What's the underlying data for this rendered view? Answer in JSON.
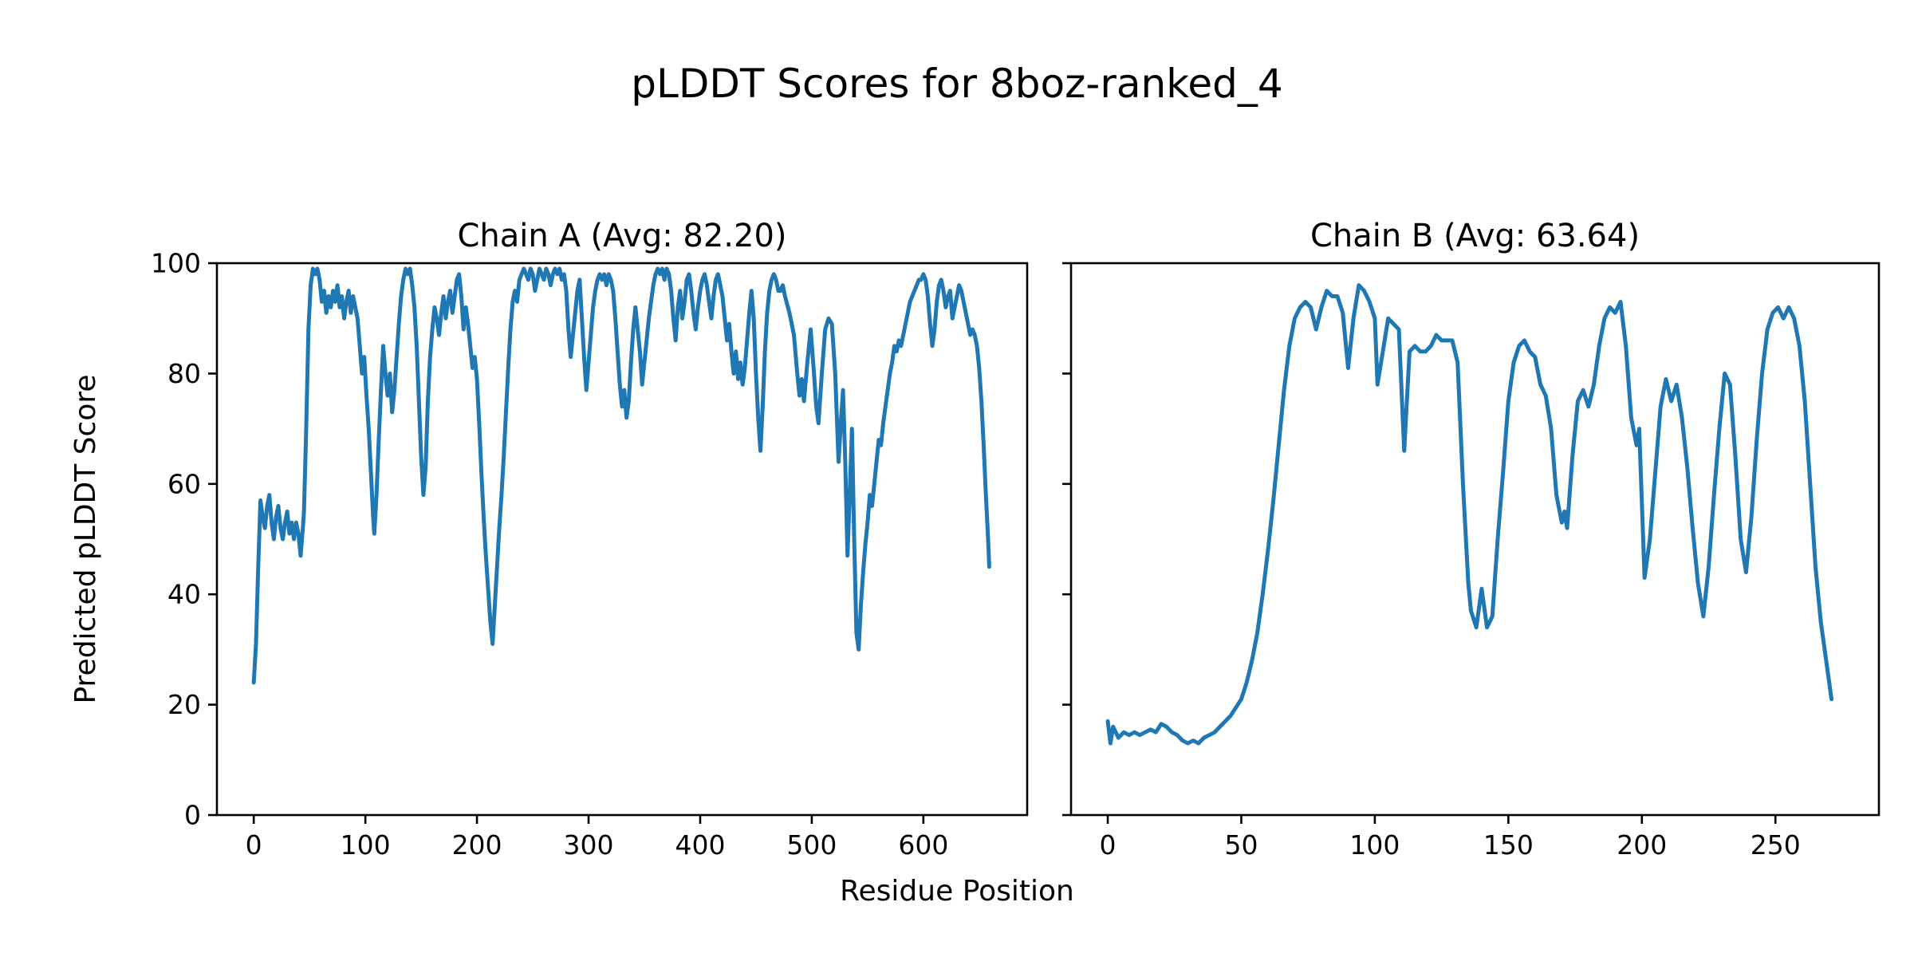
{
  "figure": {
    "title": "pLDDT Scores for 8boz-ranked_4",
    "xlabel": "Residue Position",
    "ylabel": "Predicted pLDDT Score",
    "background_color": "#ffffff",
    "line_color": "#1f77b4",
    "axis_color": "#000000"
  },
  "chart_data": [
    {
      "type": "line",
      "title": "Chain A (Avg: 82.20)",
      "avg": 82.2,
      "xlim": [
        -33,
        693
      ],
      "ylim": [
        0,
        100
      ],
      "xticks": [
        0,
        100,
        200,
        300,
        400,
        500,
        600
      ],
      "yticks": [
        0,
        20,
        40,
        60,
        80,
        100
      ],
      "show_ytick_labels": true,
      "x": [
        0,
        2,
        4,
        6,
        8,
        10,
        12,
        14,
        16,
        18,
        20,
        22,
        24,
        26,
        28,
        30,
        32,
        34,
        36,
        38,
        40,
        42,
        44,
        45,
        47,
        49,
        51,
        53,
        55,
        57,
        59,
        61,
        63,
        65,
        67,
        69,
        71,
        73,
        75,
        77,
        79,
        81,
        83,
        85,
        87,
        89,
        91,
        93,
        95,
        97,
        99,
        101,
        103,
        105,
        107,
        108,
        110,
        112,
        114,
        116,
        118,
        120,
        122,
        124,
        126,
        128,
        130,
        132,
        134,
        136,
        138,
        140,
        142,
        144,
        146,
        148,
        150,
        152,
        154,
        156,
        158,
        160,
        162,
        164,
        166,
        168,
        170,
        172,
        174,
        176,
        178,
        180,
        182,
        184,
        186,
        188,
        190,
        192,
        194,
        196,
        198,
        200,
        202,
        204,
        206,
        208,
        210,
        212,
        214,
        216,
        218,
        220,
        222,
        224,
        226,
        228,
        230,
        232,
        234,
        236,
        238,
        240,
        242,
        244,
        246,
        248,
        250,
        252,
        254,
        256,
        258,
        260,
        262,
        264,
        266,
        268,
        270,
        272,
        274,
        276,
        278,
        280,
        282,
        284,
        286,
        288,
        290,
        292,
        294,
        296,
        298,
        300,
        302,
        304,
        306,
        308,
        310,
        312,
        314,
        316,
        318,
        320,
        322,
        324,
        326,
        328,
        330,
        332,
        334,
        336,
        338,
        340,
        342,
        344,
        346,
        348,
        350,
        352,
        354,
        356,
        358,
        360,
        362,
        364,
        366,
        368,
        370,
        372,
        374,
        376,
        378,
        380,
        382,
        384,
        386,
        388,
        390,
        392,
        394,
        396,
        398,
        400,
        402,
        404,
        406,
        408,
        410,
        412,
        414,
        416,
        418,
        420,
        422,
        424,
        426,
        428,
        430,
        432,
        434,
        436,
        438,
        440,
        442,
        444,
        446,
        448,
        450,
        452,
        454,
        456,
        458,
        460,
        462,
        464,
        466,
        468,
        470,
        472,
        474,
        476,
        480,
        484,
        487,
        489,
        491,
        493,
        496,
        499,
        502,
        504,
        506,
        509,
        512,
        515,
        518,
        521,
        524,
        526,
        528,
        530,
        532,
        534,
        536,
        538,
        540,
        542,
        544,
        546,
        548,
        550,
        552,
        554,
        556,
        558,
        560,
        562,
        564,
        566,
        568,
        570,
        572,
        574,
        576,
        578,
        580,
        582,
        584,
        586,
        588,
        590,
        592,
        594,
        596,
        598,
        600,
        602,
        604,
        606,
        608,
        610,
        612,
        614,
        616,
        618,
        620,
        622,
        624,
        626,
        628,
        630,
        632,
        634,
        636,
        638,
        640,
        642,
        644,
        646,
        648,
        650,
        652,
        654,
        656,
        658,
        659
      ],
      "y": [
        24,
        31,
        45,
        57,
        54,
        52,
        56,
        58,
        53,
        50,
        54,
        56,
        52,
        50,
        53,
        55,
        51,
        53,
        50,
        53,
        51,
        47,
        52,
        55,
        70,
        88,
        96,
        99,
        98,
        99,
        97,
        93,
        95,
        91,
        94,
        92,
        95,
        93,
        96,
        92,
        94,
        90,
        93,
        95,
        91,
        94,
        92,
        90,
        85,
        80,
        83,
        76,
        70,
        62,
        54,
        51,
        58,
        68,
        77,
        85,
        80,
        76,
        80,
        73,
        77,
        83,
        89,
        94,
        97,
        99,
        98,
        99,
        96,
        92,
        85,
        75,
        65,
        58,
        63,
        75,
        83,
        88,
        92,
        90,
        87,
        91,
        94,
        90,
        93,
        95,
        91,
        94,
        97,
        98,
        94,
        88,
        92,
        89,
        85,
        81,
        83,
        79,
        71,
        62,
        54,
        47,
        41,
        35,
        31,
        38,
        45,
        52,
        58,
        65,
        73,
        81,
        88,
        93,
        95,
        93,
        97,
        98,
        99,
        98,
        97,
        99,
        98,
        95,
        97,
        99,
        98,
        97,
        99,
        98,
        96,
        98,
        99,
        98,
        99,
        97,
        98,
        95,
        88,
        83,
        87,
        91,
        95,
        97,
        90,
        83,
        77,
        82,
        87,
        92,
        95,
        97,
        98,
        97,
        98,
        96,
        98,
        97,
        95,
        90,
        84,
        78,
        74,
        77,
        72,
        75,
        82,
        88,
        92,
        88,
        84,
        78,
        82,
        86,
        90,
        93,
        96,
        98,
        99,
        98,
        99,
        97,
        99,
        98,
        95,
        90,
        86,
        92,
        95,
        90,
        93,
        97,
        98,
        95,
        91,
        88,
        92,
        95,
        97,
        98,
        96,
        93,
        90,
        94,
        97,
        98,
        96,
        94,
        90,
        86,
        89,
        84,
        80,
        84,
        79,
        82,
        78,
        81,
        86,
        91,
        95,
        90,
        80,
        72,
        66,
        74,
        84,
        91,
        95,
        97,
        98,
        97,
        95,
        95,
        96,
        94,
        91,
        87,
        80,
        76,
        79,
        75,
        82,
        88,
        80,
        74,
        71,
        80,
        88,
        90,
        89,
        80,
        64,
        71,
        77,
        64,
        47,
        58,
        70,
        50,
        33,
        30,
        38,
        44,
        49,
        53,
        58,
        56,
        60,
        64,
        68,
        67,
        71,
        74,
        77,
        80,
        82,
        85,
        84,
        86,
        85,
        87,
        89,
        91,
        93,
        94,
        95,
        96,
        97,
        97,
        98,
        97,
        94,
        89,
        85,
        88,
        93,
        96,
        97,
        95,
        92,
        94,
        95,
        90,
        92,
        94,
        96,
        95,
        93,
        91,
        89,
        87,
        88,
        87,
        85,
        81,
        75,
        67,
        58,
        50,
        45
      ]
    },
    {
      "type": "line",
      "title": "Chain B (Avg: 63.64)",
      "avg": 63.64,
      "xlim": [
        -13.75,
        288.75
      ],
      "ylim": [
        0,
        100
      ],
      "xticks": [
        0,
        50,
        100,
        150,
        200,
        250
      ],
      "yticks": [
        0,
        20,
        40,
        60,
        80,
        100
      ],
      "show_ytick_labels": false,
      "x": [
        0,
        1,
        2,
        4,
        6,
        8,
        10,
        12,
        14,
        16,
        18,
        20,
        22,
        24,
        26,
        28,
        30,
        32,
        34,
        36,
        38,
        40,
        42,
        44,
        46,
        48,
        50,
        52,
        54,
        56,
        58,
        60,
        62,
        64,
        66,
        68,
        70,
        72,
        74,
        76,
        78,
        80,
        82,
        84,
        86,
        88,
        90,
        92,
        94,
        96,
        98,
        100,
        101,
        103,
        105,
        107,
        109,
        111,
        113,
        115,
        117,
        119,
        121,
        123,
        125,
        127,
        129,
        131,
        133,
        135,
        136,
        138,
        140,
        142,
        144,
        146,
        148,
        150,
        152,
        154,
        156,
        158,
        160,
        162,
        164,
        166,
        168,
        170,
        171,
        172,
        174,
        176,
        178,
        180,
        182,
        184,
        186,
        188,
        190,
        192,
        194,
        196,
        198,
        199,
        201,
        203,
        205,
        207,
        209,
        211,
        213,
        215,
        217,
        219,
        221,
        223,
        225,
        227,
        229,
        231,
        233,
        235,
        237,
        239,
        241,
        243,
        245,
        247,
        249,
        251,
        253,
        255,
        257,
        259,
        261,
        263,
        265,
        267,
        269,
        271
      ],
      "y": [
        17,
        13,
        16,
        14,
        15,
        14.5,
        15,
        14.5,
        15,
        15.5,
        15,
        16.5,
        16,
        15,
        14.5,
        13.5,
        13,
        13.5,
        13,
        14,
        14.5,
        15,
        16,
        17,
        18,
        19.5,
        21,
        24,
        28,
        33,
        40,
        48,
        57,
        67,
        77,
        85,
        90,
        92,
        93,
        92,
        88,
        92,
        95,
        94,
        94,
        91,
        81,
        90,
        96,
        95,
        93,
        90,
        78,
        84,
        90,
        89,
        88,
        66,
        84,
        85,
        84,
        84,
        85,
        87,
        86,
        86,
        86,
        82,
        60,
        42,
        37,
        34,
        41,
        34,
        36,
        50,
        62,
        75,
        82,
        85,
        86,
        84,
        83,
        78,
        76,
        70,
        58,
        53,
        55,
        52,
        65,
        75,
        77,
        74,
        78,
        85,
        90,
        92,
        91,
        93,
        85,
        72,
        67,
        70,
        43,
        50,
        62,
        74,
        79,
        75,
        78,
        72,
        63,
        52,
        42,
        36,
        45,
        58,
        70,
        80,
        78,
        65,
        50,
        44,
        54,
        68,
        80,
        88,
        91,
        92,
        90,
        92,
        90,
        85,
        75,
        60,
        45,
        35,
        28,
        21
      ]
    }
  ]
}
